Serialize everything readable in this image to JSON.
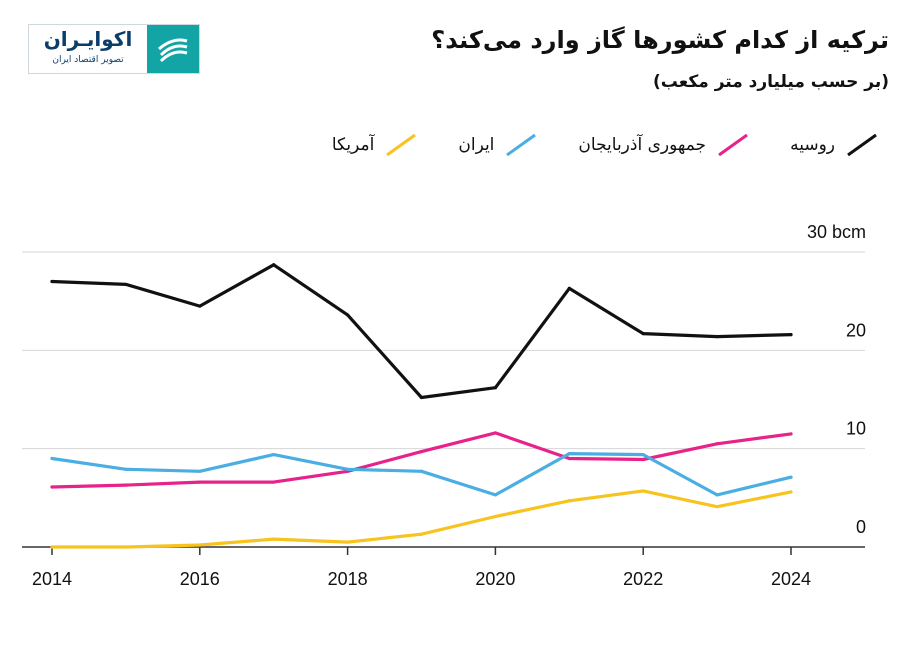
{
  "logo": {
    "name": "اکوایـران",
    "tagline": "تصویر اقتصاد ایران",
    "color": "#13a5a5"
  },
  "title": "ترکیه از کدام کشورها گاز وارد می‌کند؟",
  "subtitle": "(بر حسب میلیارد متر مکعب)",
  "chart_data": {
    "type": "line",
    "x": [
      2014,
      2015,
      2016,
      2017,
      2018,
      2019,
      2020,
      2021,
      2022,
      2023,
      2024
    ],
    "x_ticks": [
      "2014",
      "2016",
      "2018",
      "2020",
      "2022",
      "2024"
    ],
    "y_ticks": [
      "0",
      "10",
      "20",
      "30 bcm"
    ],
    "ylim": [
      0,
      30
    ],
    "grid": true,
    "legend_position": "top",
    "series": [
      {
        "name": "روسیه",
        "color": "#111111",
        "values": [
          27.0,
          26.7,
          24.5,
          28.7,
          23.6,
          15.2,
          16.2,
          26.3,
          21.7,
          21.4,
          21.6
        ]
      },
      {
        "name": "جمهوری آذربایجان",
        "color": "#e8228b",
        "values": [
          6.1,
          6.3,
          6.6,
          6.6,
          7.7,
          9.7,
          11.6,
          9.0,
          8.9,
          10.5,
          11.5
        ]
      },
      {
        "name": "ایران",
        "color": "#4aaee3",
        "values": [
          9.0,
          7.9,
          7.7,
          9.4,
          7.9,
          7.7,
          5.3,
          9.5,
          9.4,
          5.3,
          7.1
        ]
      },
      {
        "name": "آمریکا",
        "color": "#f7c31f",
        "values": [
          0.0,
          0.0,
          0.2,
          0.8,
          0.5,
          1.3,
          3.1,
          4.7,
          5.7,
          4.1,
          5.6
        ]
      }
    ]
  }
}
